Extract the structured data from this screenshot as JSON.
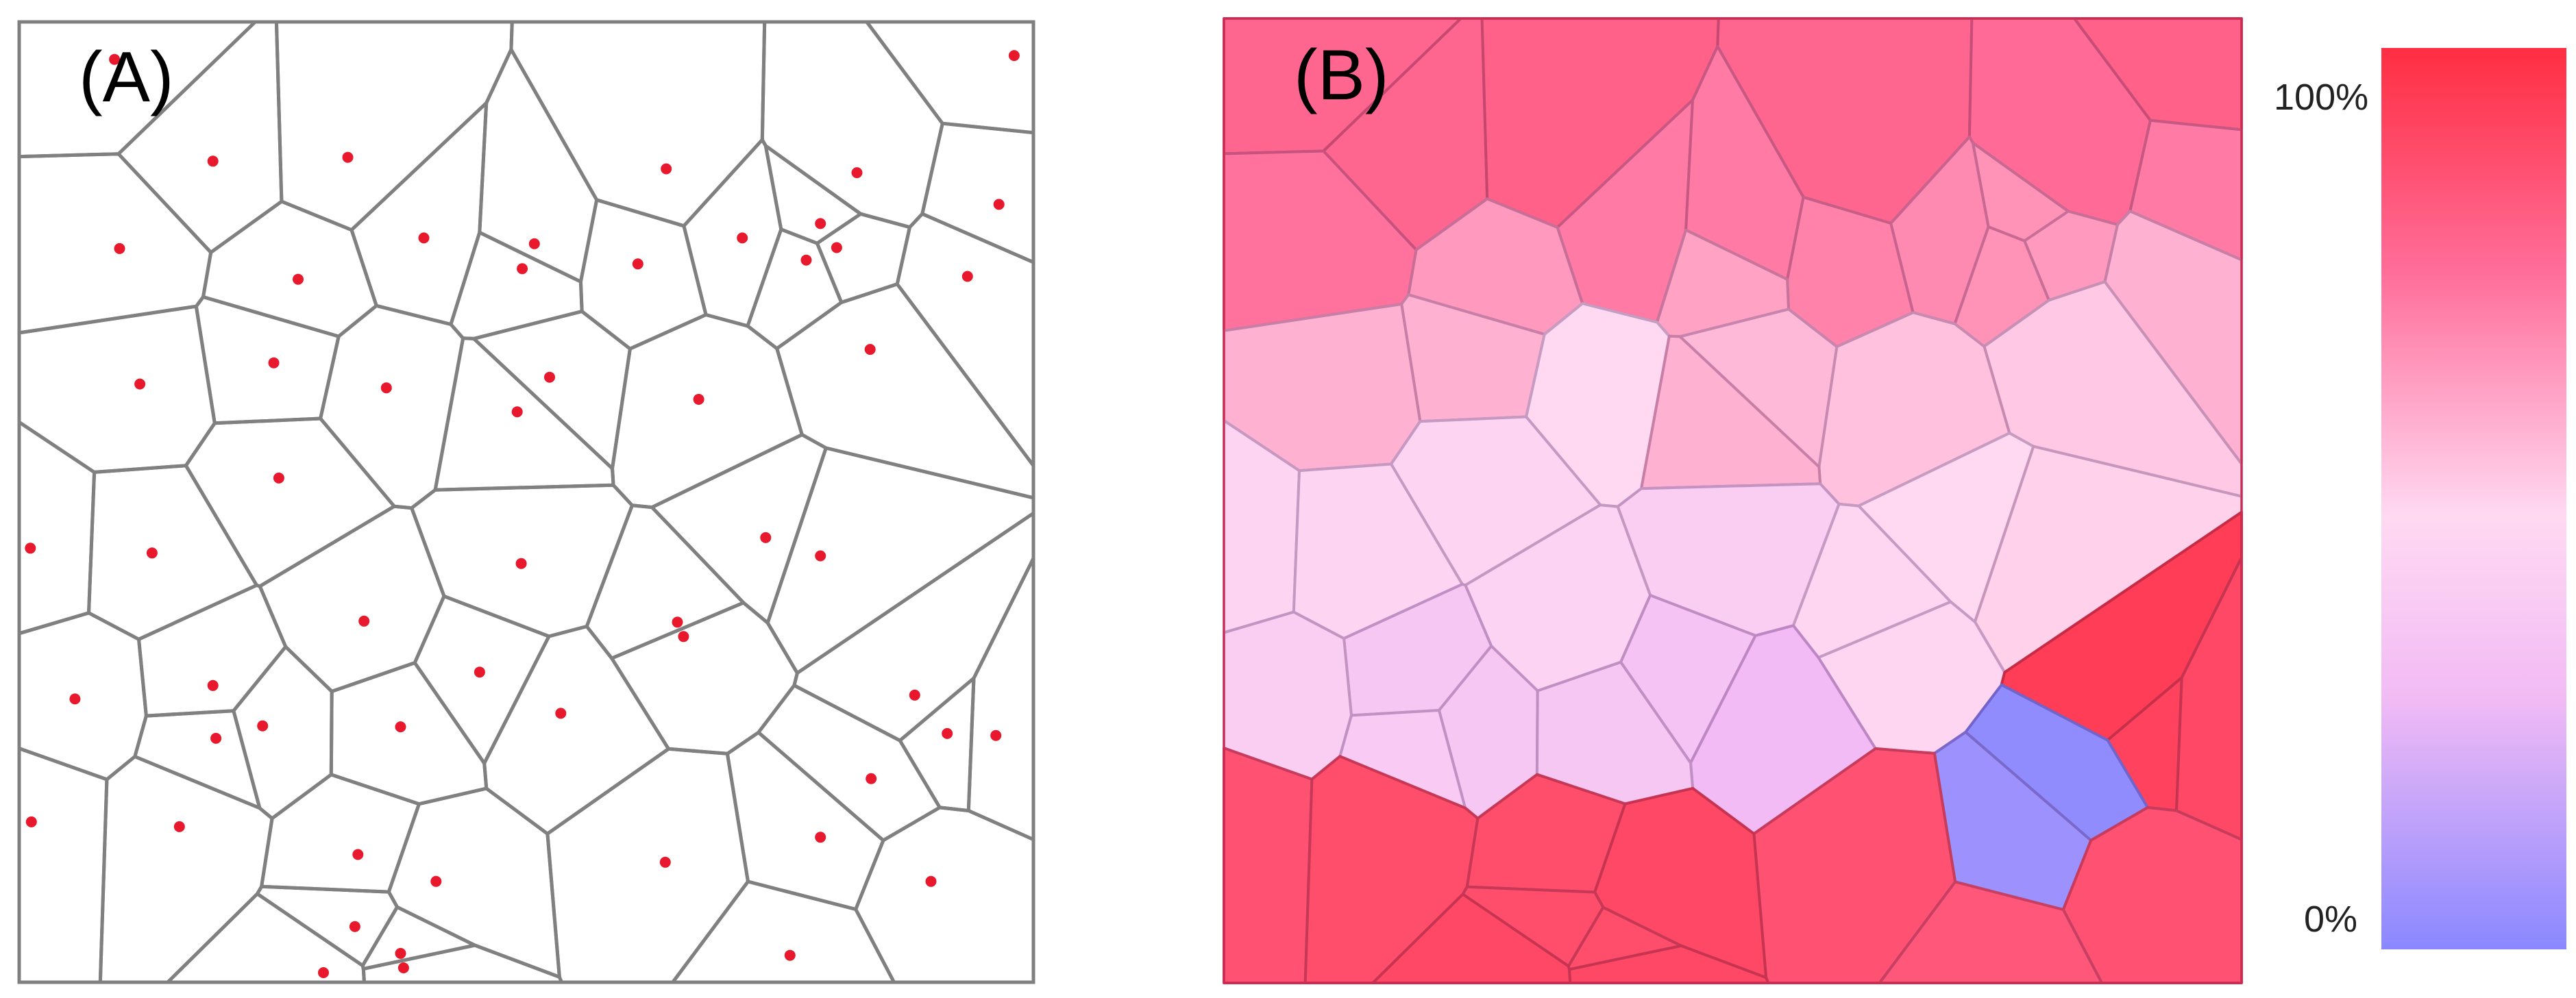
{
  "panel_a": {
    "label": "(A)"
  },
  "panel_b": {
    "label": "(B)"
  },
  "colorbar": {
    "max_label": "100%",
    "min_label": "0%"
  },
  "colors": {
    "edge_a": "#808080",
    "seed_point": "#e8192c",
    "high": "#ff2e42",
    "mid": "#ffd9f2",
    "low": "#8a88ff"
  }
}
